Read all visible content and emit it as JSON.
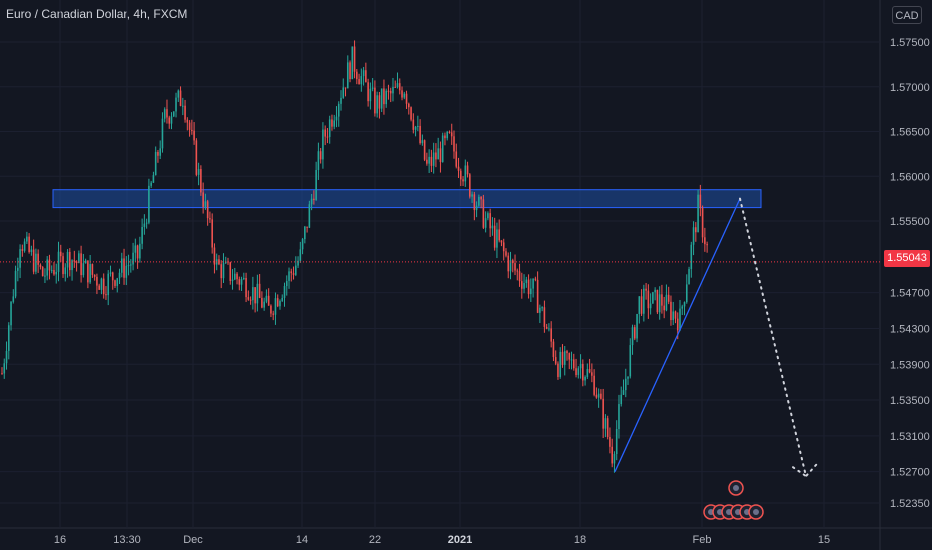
{
  "header": {
    "title": "Euro / Canadian Dollar, 4h, FXCM",
    "currency_label": "CAD"
  },
  "current_price_label": "1.55043",
  "colors": {
    "background": "#131722",
    "up": "#26a69a",
    "down": "#ef5350",
    "zone_fill": "#1e4fa3",
    "zone_border": "#2962ff",
    "trendline": "#2962ff",
    "projection": "#d1d4dc",
    "price_line": "#f23645"
  },
  "chart_data": {
    "type": "candlestick",
    "symbol": "Euro / Canadian Dollar",
    "interval": "4h",
    "source": "FXCM",
    "y_axis": {
      "ticks": [
        "1.57500",
        "1.57000",
        "1.56500",
        "1.56000",
        "1.55500",
        "1.55043",
        "1.54700",
        "1.54300",
        "1.53900",
        "1.53500",
        "1.53100",
        "1.52700",
        "1.52350"
      ],
      "range": [
        1.5215,
        1.5795
      ],
      "position": "right"
    },
    "x_axis": {
      "ticks": [
        {
          "label": "16",
          "bold": false
        },
        {
          "label": "13:30",
          "bold": false
        },
        {
          "label": "Dec",
          "bold": false
        },
        {
          "label": "14",
          "bold": false
        },
        {
          "label": "22",
          "bold": false
        },
        {
          "label": "2021",
          "bold": true
        },
        {
          "label": "18",
          "bold": false
        },
        {
          "label": "Feb",
          "bold": false
        },
        {
          "label": "15",
          "bold": false
        }
      ]
    },
    "current_price": 1.55043,
    "resistance_zone": {
      "low": 1.5565,
      "high": 1.5585
    },
    "trendline": {
      "from_price": 1.527,
      "to_price": 1.5575
    },
    "projection_path": [
      1.5575,
      1.5265,
      1.528
    ],
    "anchors": [
      {
        "i": 0,
        "p": 1.538
      },
      {
        "i": 8,
        "p": 1.553
      },
      {
        "i": 18,
        "p": 1.549
      },
      {
        "i": 30,
        "p": 1.551
      },
      {
        "i": 45,
        "p": 1.548
      },
      {
        "i": 60,
        "p": 1.551
      },
      {
        "i": 72,
        "p": 1.5665
      },
      {
        "i": 80,
        "p": 1.569
      },
      {
        "i": 95,
        "p": 1.55
      },
      {
        "i": 108,
        "p": 1.548
      },
      {
        "i": 118,
        "p": 1.545
      },
      {
        "i": 132,
        "p": 1.551
      },
      {
        "i": 142,
        "p": 1.564
      },
      {
        "i": 155,
        "p": 1.573
      },
      {
        "i": 165,
        "p": 1.568
      },
      {
        "i": 178,
        "p": 1.57
      },
      {
        "i": 188,
        "p": 1.561
      },
      {
        "i": 198,
        "p": 1.564
      },
      {
        "i": 212,
        "p": 1.556
      },
      {
        "i": 225,
        "p": 1.55
      },
      {
        "i": 236,
        "p": 1.547
      },
      {
        "i": 246,
        "p": 1.539
      },
      {
        "i": 256,
        "p": 1.539
      },
      {
        "i": 262,
        "p": 1.537
      },
      {
        "i": 270,
        "p": 1.529
      },
      {
        "i": 282,
        "p": 1.546
      },
      {
        "i": 292,
        "p": 1.546
      },
      {
        "i": 300,
        "p": 1.544
      },
      {
        "i": 308,
        "p": 1.5565
      },
      {
        "i": 312,
        "p": 1.552
      }
    ],
    "candle_count": 313
  }
}
